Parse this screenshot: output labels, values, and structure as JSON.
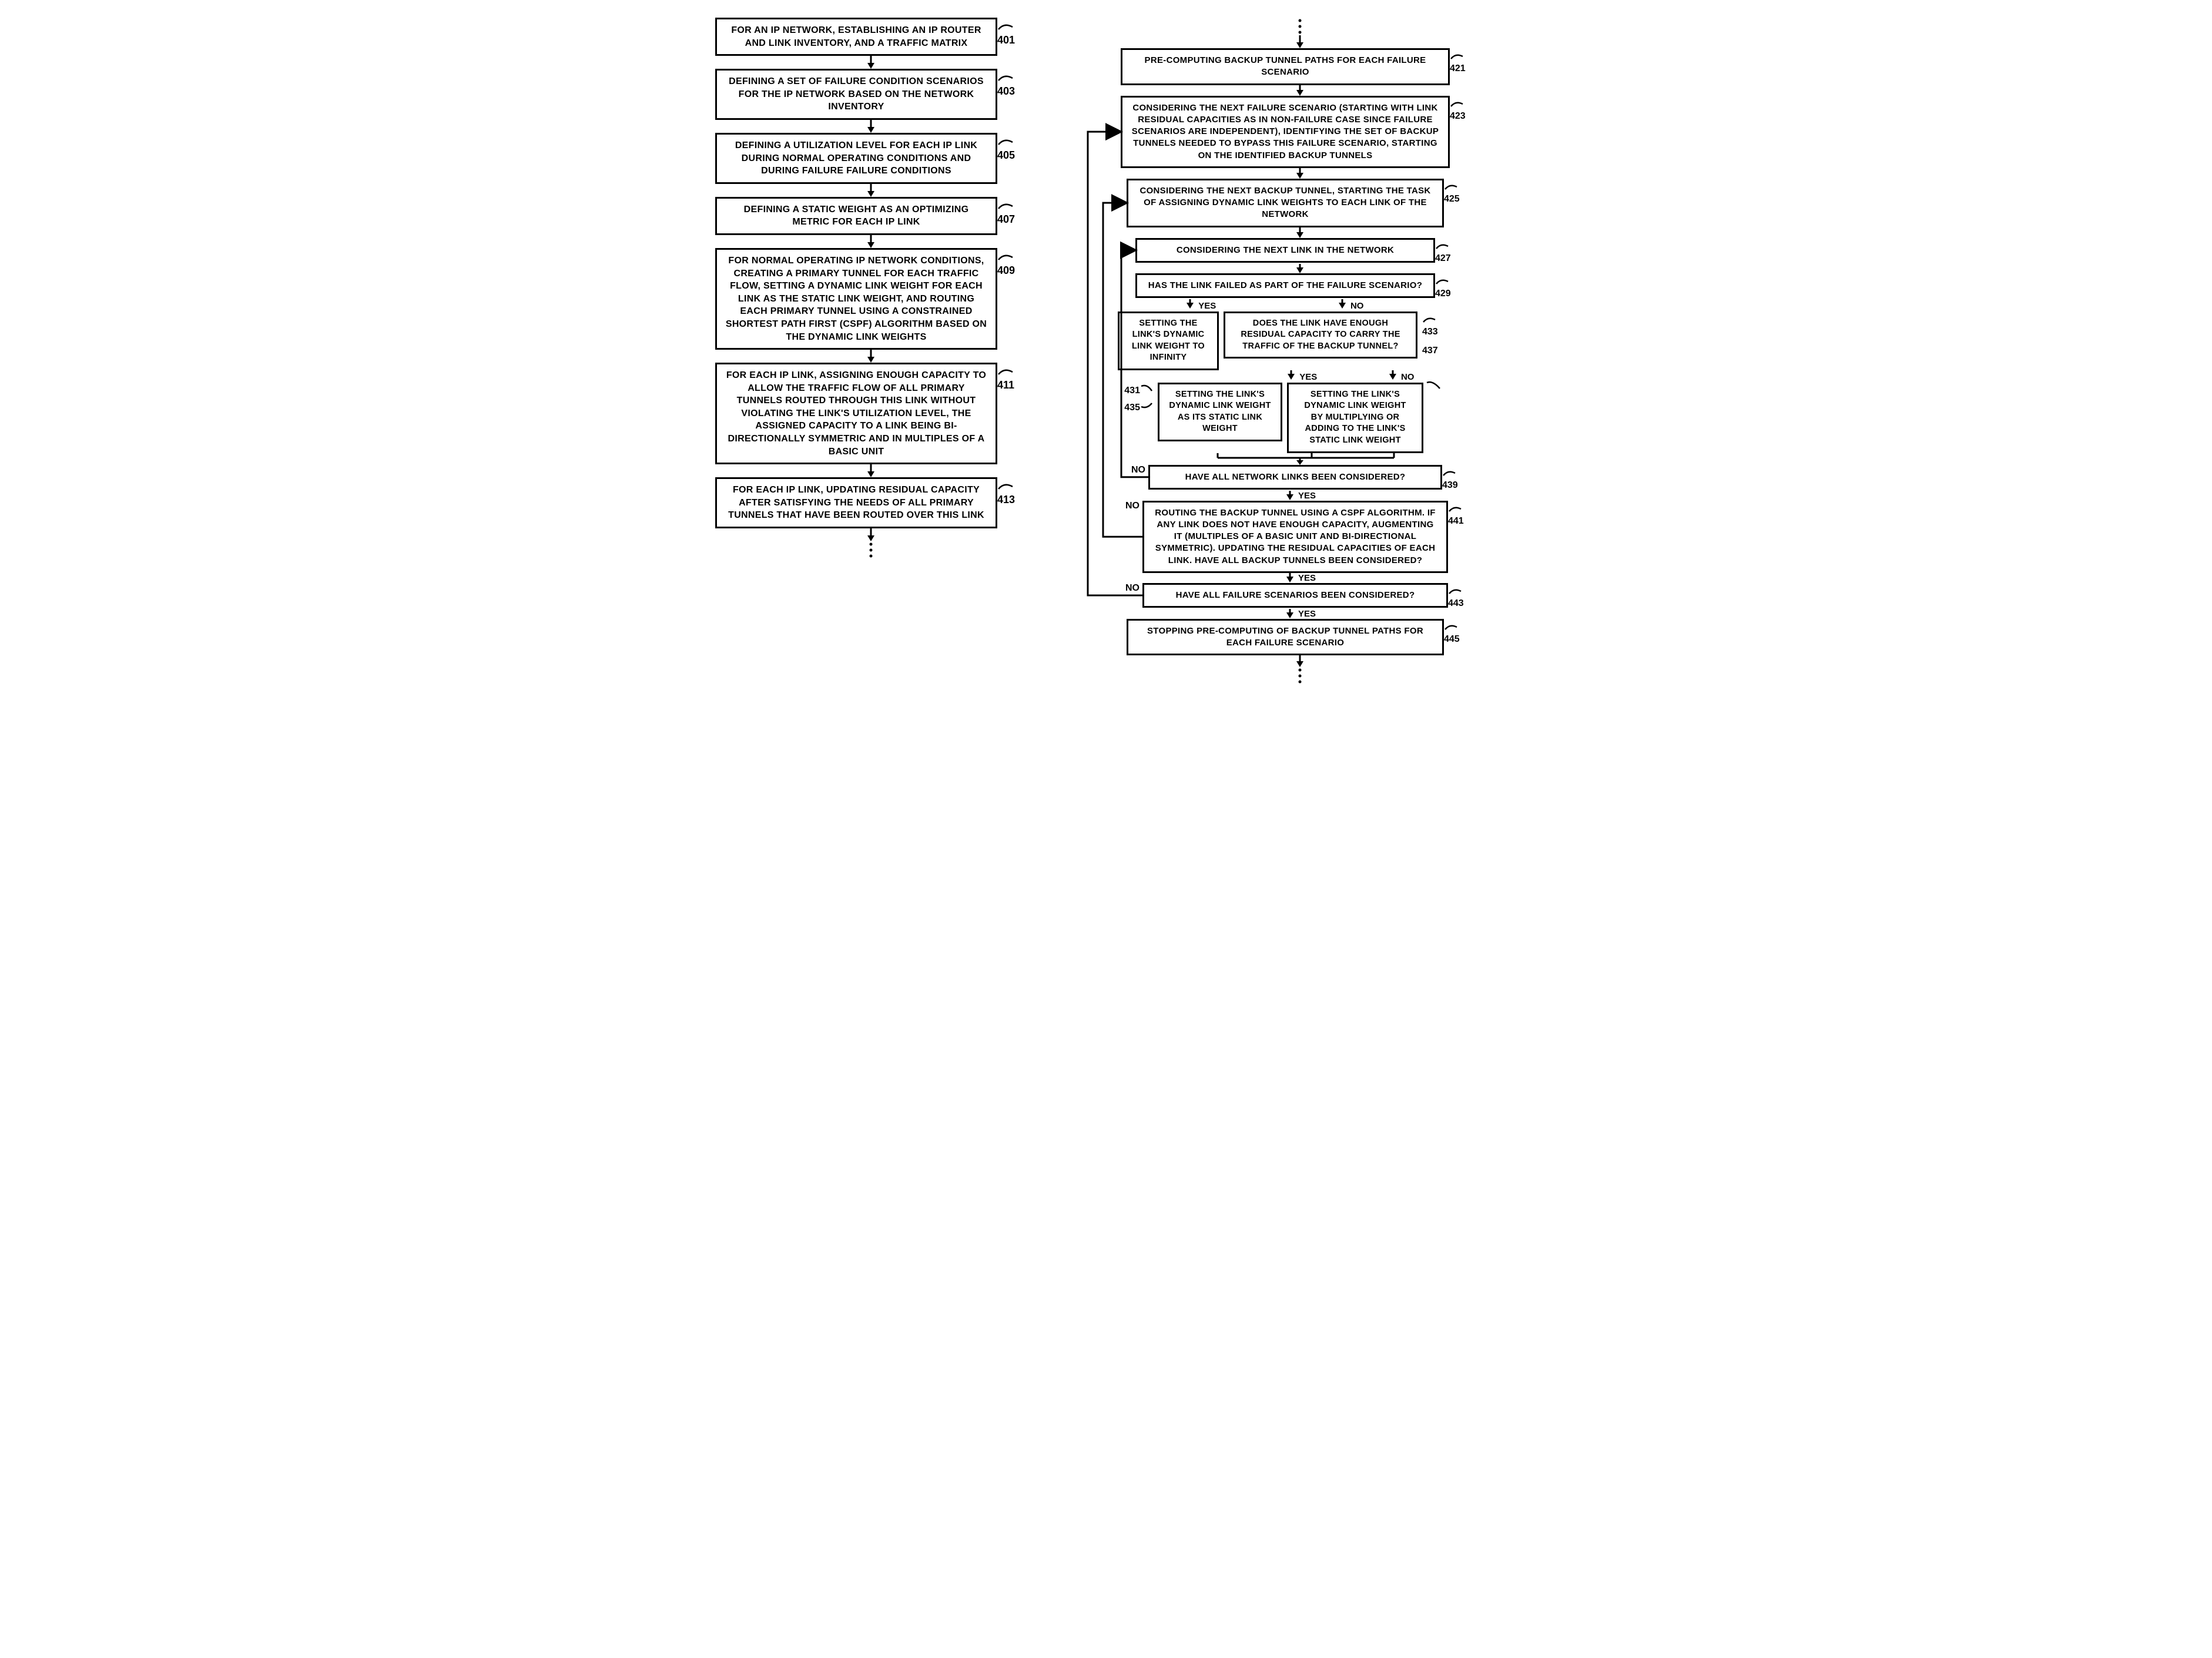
{
  "colors": {
    "stroke": "#000000",
    "background": "#ffffff"
  },
  "layout": {
    "left_box_width": 480,
    "right_box_width": 560,
    "box_border_width": 3,
    "font_size_box": 16,
    "font_size_ref": 18,
    "arrow_gap": 12,
    "arrow_head": 10
  },
  "left": [
    {
      "ref": "401",
      "text": "FOR AN IP NETWORK, ESTABLISHING AN IP ROUTER AND LINK INVENTORY, AND A TRAFFIC MATRIX"
    },
    {
      "ref": "403",
      "text": "DEFINING A SET OF FAILURE CONDITION SCENARIOS FOR THE IP NETWORK BASED ON THE NETWORK INVENTORY"
    },
    {
      "ref": "405",
      "text": "DEFINING A UTILIZATION LEVEL FOR EACH IP LINK DURING NORMAL OPERATING CONDITIONS AND DURING FAILURE FAILURE CONDITIONS"
    },
    {
      "ref": "407",
      "text": "DEFINING A STATIC WEIGHT AS AN OPTIMIZING METRIC FOR EACH IP LINK"
    },
    {
      "ref": "409",
      "text": "FOR NORMAL OPERATING IP NETWORK CONDITIONS, CREATING A PRIMARY TUNNEL FOR EACH TRAFFIC FLOW, SETTING A DYNAMIC LINK WEIGHT FOR EACH LINK AS THE STATIC LINK WEIGHT, AND ROUTING EACH PRIMARY TUNNEL USING A CONSTRAINED SHORTEST PATH FIRST (CSPF) ALGORITHM BASED ON THE DYNAMIC LINK WEIGHTS"
    },
    {
      "ref": "411",
      "text": "FOR EACH IP LINK, ASSIGNING ENOUGH CAPACITY TO ALLOW THE TRAFFIC FLOW OF ALL PRIMARY TUNNELS ROUTED THROUGH THIS LINK WITHOUT VIOLATING THE LINK'S UTILIZATION LEVEL, THE ASSIGNED CAPACITY TO A LINK BEING BI-DIRECTIONALLY SYMMETRIC AND IN MULTIPLES OF A BASIC UNIT"
    },
    {
      "ref": "413",
      "text": "FOR EACH IP LINK, UPDATING RESIDUAL CAPACITY AFTER SATISFYING THE NEEDS OF ALL PRIMARY TUNNELS THAT HAVE BEEN ROUTED OVER THIS LINK"
    }
  ],
  "right": {
    "b421": {
      "ref": "421",
      "text": "PRE-COMPUTING BACKUP TUNNEL PATHS FOR EACH FAILURE SCENARIO"
    },
    "b423": {
      "ref": "423",
      "text": "CONSIDERING THE NEXT FAILURE SCENARIO (STARTING WITH LINK RESIDUAL CAPACITIES AS IN NON-FAILURE CASE SINCE FAILURE SCENARIOS ARE INDEPENDENT), IDENTIFYING THE SET OF BACKUP TUNNELS NEEDED TO BYPASS THIS FAILURE SCENARIO, STARTING ON THE IDENTIFIED BACKUP TUNNELS"
    },
    "b425": {
      "ref": "425",
      "text": "CONSIDERING THE NEXT BACKUP TUNNEL, STARTING THE TASK OF ASSIGNING DYNAMIC LINK WEIGHTS TO EACH LINK OF THE NETWORK"
    },
    "b427": {
      "ref": "427",
      "text": "CONSIDERING THE NEXT LINK IN THE NETWORK"
    },
    "b429": {
      "ref": "429",
      "text": "HAS THE LINK FAILED AS PART OF THE FAILURE SCENARIO?"
    },
    "b431": {
      "ref": "431",
      "text": "SETTING THE LINK'S DYNAMIC LINK WEIGHT TO INFINITY"
    },
    "b433": {
      "ref": "433",
      "text": "DOES THE LINK HAVE ENOUGH RESIDUAL CAPACITY TO CARRY THE TRAFFIC OF THE BACKUP TUNNEL?"
    },
    "b435": {
      "ref": "435",
      "text": "SETTING THE LINK'S DYNAMIC LINK WEIGHT AS ITS STATIC LINK WEIGHT"
    },
    "b437": {
      "ref": "437",
      "text": "SETTING THE LINK'S DYNAMIC LINK WEIGHT BY MULTIPLYING OR ADDING TO THE LINK'S STATIC LINK WEIGHT"
    },
    "b439": {
      "ref": "439",
      "text": "HAVE ALL NETWORK LINKS BEEN CONSIDERED?"
    },
    "b441": {
      "ref": "441",
      "text": "ROUTING THE BACKUP TUNNEL USING A CSPF ALGORITHM. IF ANY LINK DOES NOT HAVE ENOUGH CAPACITY, AUGMENTING IT (MULTIPLES OF A BASIC UNIT AND BI-DIRECTIONAL SYMMETRIC). UPDATING THE RESIDUAL CAPACITIES OF EACH LINK. HAVE ALL BACKUP TUNNELS BEEN CONSIDERED?"
    },
    "b443": {
      "ref": "443",
      "text": "HAVE ALL FAILURE SCENARIOS BEEN CONSIDERED?"
    },
    "b445": {
      "ref": "445",
      "text": "STOPPING PRE-COMPUTING OF BACKUP TUNNEL PATHS FOR EACH FAILURE SCENARIO"
    },
    "labels": {
      "yes": "YES",
      "no": "NO"
    }
  }
}
